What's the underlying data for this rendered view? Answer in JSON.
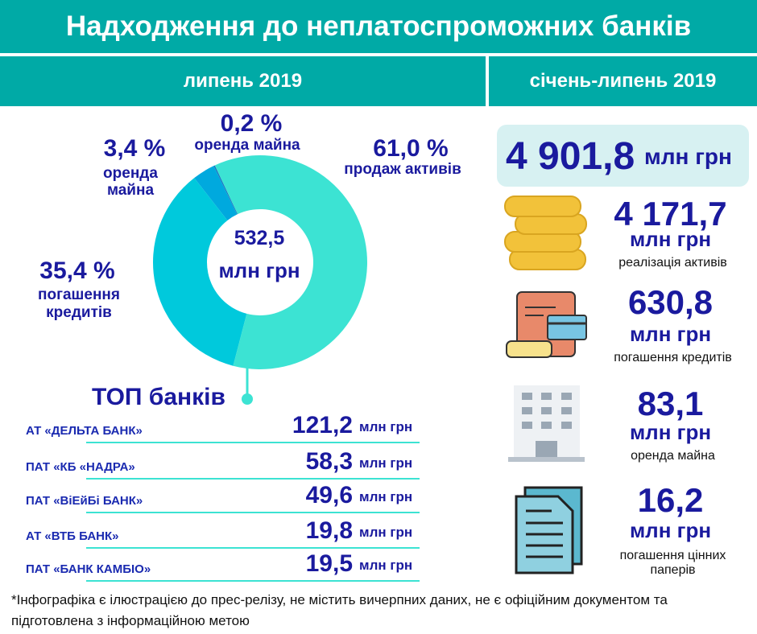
{
  "header": {
    "title": "Надходження до неплатоспроможних банків",
    "left_period": "липень 2019",
    "right_period": "січень-липень 2019"
  },
  "donut": {
    "type": "pie",
    "total": "532,5",
    "unit": "млн грн",
    "segments": [
      {
        "label": "продаж активів",
        "value": 61.0,
        "value_label": "61,0 %",
        "color": "#3ce3d3"
      },
      {
        "label": "погашення кредитів",
        "value": 35.4,
        "value_label": "35,4 %",
        "color": "#00c9dc"
      },
      {
        "label": "оренда майна",
        "value": 3.4,
        "value_label": "3,4 %",
        "color": "#00a9de"
      },
      {
        "label": "оренда майна",
        "value": 0.2,
        "value_label": "0,2 %",
        "color": "#1b76c2"
      }
    ]
  },
  "top_banks": {
    "title": "ТОП банків",
    "unit": "млн грн",
    "rows": [
      {
        "name": "АТ «ДЕЛЬТА БАНК»",
        "value": "121,2"
      },
      {
        "name": "ПАТ «КБ «НАДРА»",
        "value": "58,3"
      },
      {
        "name": "ПАТ «ВіЕйБі БАНК»",
        "value": "49,6"
      },
      {
        "name": "АТ «ВТБ БАНК»",
        "value": "19,8"
      },
      {
        "name": "ПАТ «БАНК КАМБІО»",
        "value": "19,5"
      }
    ]
  },
  "period_total": {
    "value": "4 901,8",
    "unit": "млн грн"
  },
  "items": {
    "unit": "млн грн",
    "rows": [
      {
        "value": "4 171,7",
        "label": "реалізація активів"
      },
      {
        "value": "630,8",
        "label": "погашення кредитів"
      },
      {
        "value": "83,1",
        "label": "оренда майна"
      },
      {
        "value": "16,2",
        "label": "погашення цінних паперів"
      }
    ]
  },
  "footnote": "*Інфографіка є ілюстрацією до прес-релізу, не містить вичерпних даних, не є офіційним документом та підготовлена з інформаційною метою"
}
